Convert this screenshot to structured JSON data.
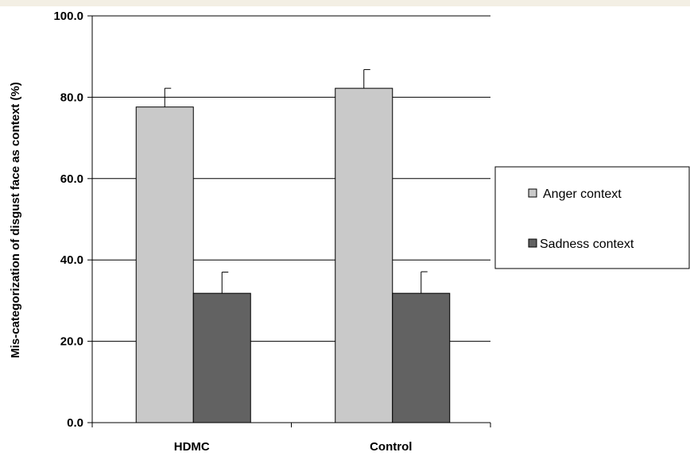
{
  "chart_data": {
    "type": "bar",
    "title": "",
    "xlabel": "",
    "ylabel": "Mis-categorization of disgust face as context  (%)",
    "ylim": [
      0,
      100
    ],
    "yticks": [
      0,
      20,
      40,
      60,
      80,
      100
    ],
    "ytick_labels": [
      "0.0",
      "20.0",
      "40.0",
      "60.0",
      "80.0",
      "100.0"
    ],
    "grid": "horizontal",
    "legend_position": "right",
    "categories": [
      "HDMC",
      "Control"
    ],
    "series": [
      {
        "name": "Anger context",
        "color": "#c9c9c9",
        "values": [
          77.6,
          82.2
        ],
        "errors": [
          4.6,
          4.6
        ]
      },
      {
        "name": "Sadness context",
        "color": "#626262",
        "values": [
          31.8,
          31.8
        ],
        "errors": [
          5.2,
          5.3
        ]
      }
    ]
  }
}
